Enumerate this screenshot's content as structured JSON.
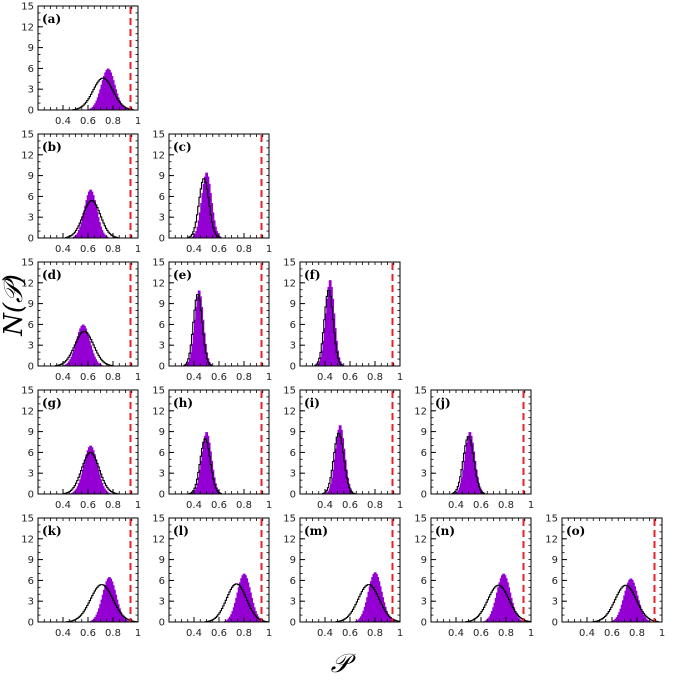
{
  "chart_data": {
    "type": "histogram-grid",
    "xlabel": "𝒫",
    "ylabel": "N(𝒫)",
    "xlim": [
      0.2,
      1.0
    ],
    "ylim": [
      0,
      15
    ],
    "xticks": [
      "0.4",
      "0.6",
      "0.8",
      "1"
    ],
    "xtick_values": [
      0.4,
      0.6,
      0.8,
      1.0
    ],
    "yticks": [
      "0",
      "3",
      "6",
      "9",
      "12",
      "15"
    ],
    "ytick_values": [
      0,
      3,
      6,
      9,
      12,
      15
    ],
    "threshold": 0.94,
    "colors": {
      "filled": "#9400D3",
      "outline": "#000000",
      "threshold": "#E8202A"
    },
    "series_names": [
      "filled histogram",
      "outline histogram"
    ],
    "panels": [
      {
        "label": "(a)",
        "row": 0,
        "col": 0,
        "filled": {
          "mean": 0.76,
          "sd": 0.055,
          "peak": 6.0
        },
        "outline": {
          "mean": 0.72,
          "sd": 0.08,
          "peak": 4.6
        }
      },
      {
        "label": "(b)",
        "row": 1,
        "col": 0,
        "filled": {
          "mean": 0.62,
          "sd": 0.05,
          "peak": 7.0
        },
        "outline": {
          "mean": 0.63,
          "sd": 0.07,
          "peak": 5.4
        }
      },
      {
        "label": "(c)",
        "row": 1,
        "col": 1,
        "filled": {
          "mean": 0.5,
          "sd": 0.04,
          "peak": 9.5
        },
        "outline": {
          "mean": 0.48,
          "sd": 0.04,
          "peak": 8.6
        }
      },
      {
        "label": "(d)",
        "row": 2,
        "col": 0,
        "filled": {
          "mean": 0.56,
          "sd": 0.055,
          "peak": 6.0
        },
        "outline": {
          "mean": 0.57,
          "sd": 0.075,
          "peak": 5.0
        }
      },
      {
        "label": "(e)",
        "row": 2,
        "col": 1,
        "filled": {
          "mean": 0.44,
          "sd": 0.035,
          "peak": 11.0
        },
        "outline": {
          "mean": 0.43,
          "sd": 0.035,
          "peak": 10.4
        }
      },
      {
        "label": "(f)",
        "row": 2,
        "col": 2,
        "filled": {
          "mean": 0.44,
          "sd": 0.035,
          "peak": 12.5
        },
        "outline": {
          "mean": 0.43,
          "sd": 0.035,
          "peak": 11.0
        }
      },
      {
        "label": "(g)",
        "row": 3,
        "col": 0,
        "filled": {
          "mean": 0.62,
          "sd": 0.055,
          "peak": 7.0
        },
        "outline": {
          "mean": 0.62,
          "sd": 0.07,
          "peak": 6.0
        }
      },
      {
        "label": "(h)",
        "row": 3,
        "col": 1,
        "filled": {
          "mean": 0.5,
          "sd": 0.04,
          "peak": 9.0
        },
        "outline": {
          "mean": 0.49,
          "sd": 0.04,
          "peak": 8.0
        }
      },
      {
        "label": "(i)",
        "row": 3,
        "col": 2,
        "filled": {
          "mean": 0.52,
          "sd": 0.038,
          "peak": 10.0
        },
        "outline": {
          "mean": 0.51,
          "sd": 0.04,
          "peak": 8.8
        }
      },
      {
        "label": "(j)",
        "row": 3,
        "col": 3,
        "filled": {
          "mean": 0.51,
          "sd": 0.04,
          "peak": 9.0
        },
        "outline": {
          "mean": 0.5,
          "sd": 0.042,
          "peak": 8.3
        }
      },
      {
        "label": "(k)",
        "row": 4,
        "col": 0,
        "filled": {
          "mean": 0.77,
          "sd": 0.055,
          "peak": 6.5
        },
        "outline": {
          "mean": 0.71,
          "sd": 0.09,
          "peak": 5.4
        }
      },
      {
        "label": "(l)",
        "row": 4,
        "col": 1,
        "filled": {
          "mean": 0.8,
          "sd": 0.055,
          "peak": 7.0
        },
        "outline": {
          "mean": 0.74,
          "sd": 0.08,
          "peak": 5.5
        }
      },
      {
        "label": "(m)",
        "row": 4,
        "col": 2,
        "filled": {
          "mean": 0.8,
          "sd": 0.055,
          "peak": 7.2
        },
        "outline": {
          "mean": 0.75,
          "sd": 0.085,
          "peak": 5.4
        }
      },
      {
        "label": "(n)",
        "row": 4,
        "col": 3,
        "filled": {
          "mean": 0.78,
          "sd": 0.055,
          "peak": 7.0
        },
        "outline": {
          "mean": 0.74,
          "sd": 0.085,
          "peak": 5.3
        }
      },
      {
        "label": "(o)",
        "row": 4,
        "col": 4,
        "filled": {
          "mean": 0.75,
          "sd": 0.055,
          "peak": 6.3
        },
        "outline": {
          "mean": 0.71,
          "sd": 0.085,
          "peak": 5.3
        }
      }
    ]
  }
}
